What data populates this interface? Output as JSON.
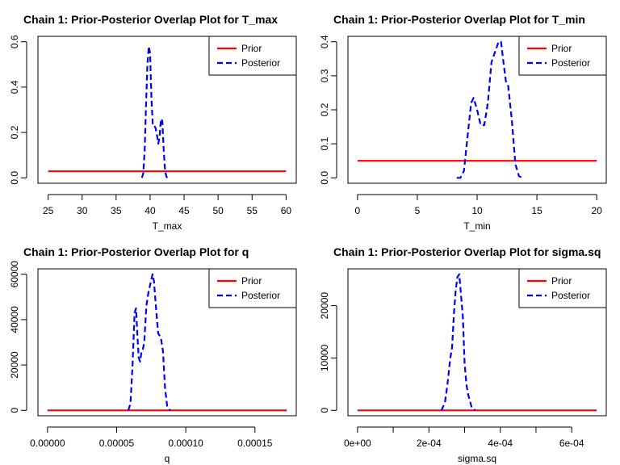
{
  "colors": {
    "prior": "#ff0000",
    "posterior": "#0000ff",
    "axis": "#000000"
  },
  "chart_data": [
    {
      "type": "line",
      "title": "Chain 1: Prior-Posterior Overlap Plot for T_max",
      "xlabel": "T_max",
      "ylabel": "",
      "xlim": [
        23.5,
        61.5
      ],
      "ylim": [
        -0.024,
        0.624
      ],
      "xticks": [
        25,
        30,
        35,
        40,
        45,
        50,
        55,
        60
      ],
      "xtick_labels": [
        "25",
        "30",
        "35",
        "40",
        "45",
        "50",
        "55",
        "60"
      ],
      "yticks": [
        0,
        0.2,
        0.4,
        0.6
      ],
      "ytick_labels": [
        "0.0",
        "0.2",
        "0.4",
        "0.6"
      ],
      "legend": {
        "position": "top-right",
        "entries": [
          "Prior",
          "Posterior"
        ]
      },
      "series": [
        {
          "name": "Prior",
          "style": "solid",
          "x": [
            25,
            60
          ],
          "y": [
            0.0286,
            0.0286
          ]
        },
        {
          "name": "Posterior",
          "style": "dashed",
          "x": [
            38.8,
            39.0,
            39.2,
            39.4,
            39.6,
            39.8,
            40.0,
            40.2,
            40.4,
            40.6,
            40.8,
            41.0,
            41.2,
            41.4,
            41.6,
            41.8,
            42.0,
            42.2,
            42.4,
            42.6
          ],
          "y": [
            0.0,
            0.02,
            0.12,
            0.32,
            0.5,
            0.58,
            0.55,
            0.35,
            0.23,
            0.23,
            0.22,
            0.19,
            0.15,
            0.18,
            0.26,
            0.25,
            0.12,
            0.03,
            0.005,
            0.0
          ]
        }
      ]
    },
    {
      "type": "line",
      "title": "Chain 1: Prior-Posterior Overlap Plot for T_min",
      "xlabel": "T_min",
      "ylabel": "",
      "xlim": [
        -0.8,
        20.8
      ],
      "ylim": [
        -0.016,
        0.416
      ],
      "xticks": [
        0,
        5,
        10,
        15,
        20
      ],
      "xtick_labels": [
        "0",
        "5",
        "10",
        "15",
        "20"
      ],
      "yticks": [
        0,
        0.1,
        0.2,
        0.3,
        0.4
      ],
      "ytick_labels": [
        "0.0",
        "0.1",
        "0.2",
        "0.3",
        "0.4"
      ],
      "legend": {
        "position": "top-right",
        "entries": [
          "Prior",
          "Posterior"
        ]
      },
      "series": [
        {
          "name": "Prior",
          "style": "solid",
          "x": [
            0,
            20
          ],
          "y": [
            0.05,
            0.05
          ]
        },
        {
          "name": "Posterior",
          "style": "dashed",
          "x": [
            8.3,
            8.6,
            8.9,
            9.2,
            9.5,
            9.7,
            10.0,
            10.3,
            10.6,
            10.9,
            11.2,
            11.5,
            11.8,
            12.0,
            12.2,
            12.4,
            12.6,
            12.9,
            13.2,
            13.5,
            13.8
          ],
          "y": [
            0.0,
            0.0,
            0.02,
            0.12,
            0.22,
            0.235,
            0.2,
            0.155,
            0.155,
            0.22,
            0.34,
            0.37,
            0.4,
            0.4,
            0.34,
            0.285,
            0.27,
            0.17,
            0.04,
            0.005,
            0.0
          ]
        }
      ]
    },
    {
      "type": "line",
      "title": "Chain 1: Prior-Posterior Overlap Plot for q",
      "xlabel": "q",
      "ylabel": "",
      "xlim": [
        -6.9e-06,
        0.0001799
      ],
      "ylim": [
        -2400,
        62400
      ],
      "xticks": [
        0,
        5e-05,
        0.0001,
        0.00015
      ],
      "xtick_labels": [
        "0.00000",
        "0.00005",
        "0.00010",
        "0.00015"
      ],
      "yticks": [
        0,
        20000,
        40000,
        60000
      ],
      "ytick_labels": [
        "0",
        "20000",
        "40000",
        "60000"
      ],
      "legend": {
        "position": "top-right",
        "entries": [
          "Prior",
          "Posterior"
        ]
      },
      "series": [
        {
          "name": "Prior",
          "style": "solid",
          "x": [
            0,
            0.000173
          ],
          "y": [
            0,
            0
          ]
        },
        {
          "name": "Posterior",
          "style": "dashed",
          "x": [
            5.85e-05,
            6e-05,
            6.15e-05,
            6.3e-05,
            6.4e-05,
            6.5e-05,
            6.6e-05,
            6.7e-05,
            6.8e-05,
            6.9e-05,
            7e-05,
            7.15e-05,
            7.3e-05,
            7.45e-05,
            7.6e-05,
            7.7e-05,
            7.85e-05,
            8e-05,
            8.2e-05,
            8.35e-05,
            8.5e-05,
            8.65e-05,
            8.8e-05,
            8.9e-05
          ],
          "y": [
            0,
            3000,
            20000,
            43000,
            45000,
            33000,
            23000,
            21500,
            26000,
            27000,
            30000,
            46000,
            52000,
            56000,
            60000,
            57000,
            45000,
            34000,
            32000,
            26000,
            10000,
            2000,
            300,
            0
          ]
        }
      ]
    },
    {
      "type": "line",
      "title": "Chain 1: Prior-Posterior Overlap Plot for sigma.sq",
      "xlabel": "sigma.sq",
      "ylabel": "",
      "xlim": [
        -2.68e-05,
        0.0006968
      ],
      "ylim": [
        -1040,
        27040
      ],
      "xticks": [
        0,
        0.0001,
        0.0002,
        0.0003,
        0.0004,
        0.0005,
        0.0006
      ],
      "xtick_labels": [
        "0e+00",
        "",
        "2e-04",
        "",
        "4e-04",
        "",
        "6e-04"
      ],
      "yticks": [
        0,
        10000,
        20000
      ],
      "ytick_labels": [
        "0",
        "10000",
        "20000"
      ],
      "legend": {
        "position": "top-right",
        "entries": [
          "Prior",
          "Posterior"
        ]
      },
      "series": [
        {
          "name": "Prior",
          "style": "solid",
          "x": [
            0,
            0.00067
          ],
          "y": [
            0,
            0
          ]
        },
        {
          "name": "Posterior",
          "style": "dashed",
          "x": [
            0.000235,
            0.000245,
            0.000252,
            0.00026,
            0.000265,
            0.00027,
            0.000275,
            0.00028,
            0.000285,
            0.00029,
            0.000295,
            0.0003,
            0.000305,
            0.00031,
            0.00032,
            0.00033
          ],
          "y": [
            0,
            1500,
            5000,
            10000,
            12000,
            18500,
            23000,
            25500,
            26000,
            22000,
            18000,
            9000,
            5000,
            3000,
            500,
            0
          ]
        }
      ]
    }
  ]
}
